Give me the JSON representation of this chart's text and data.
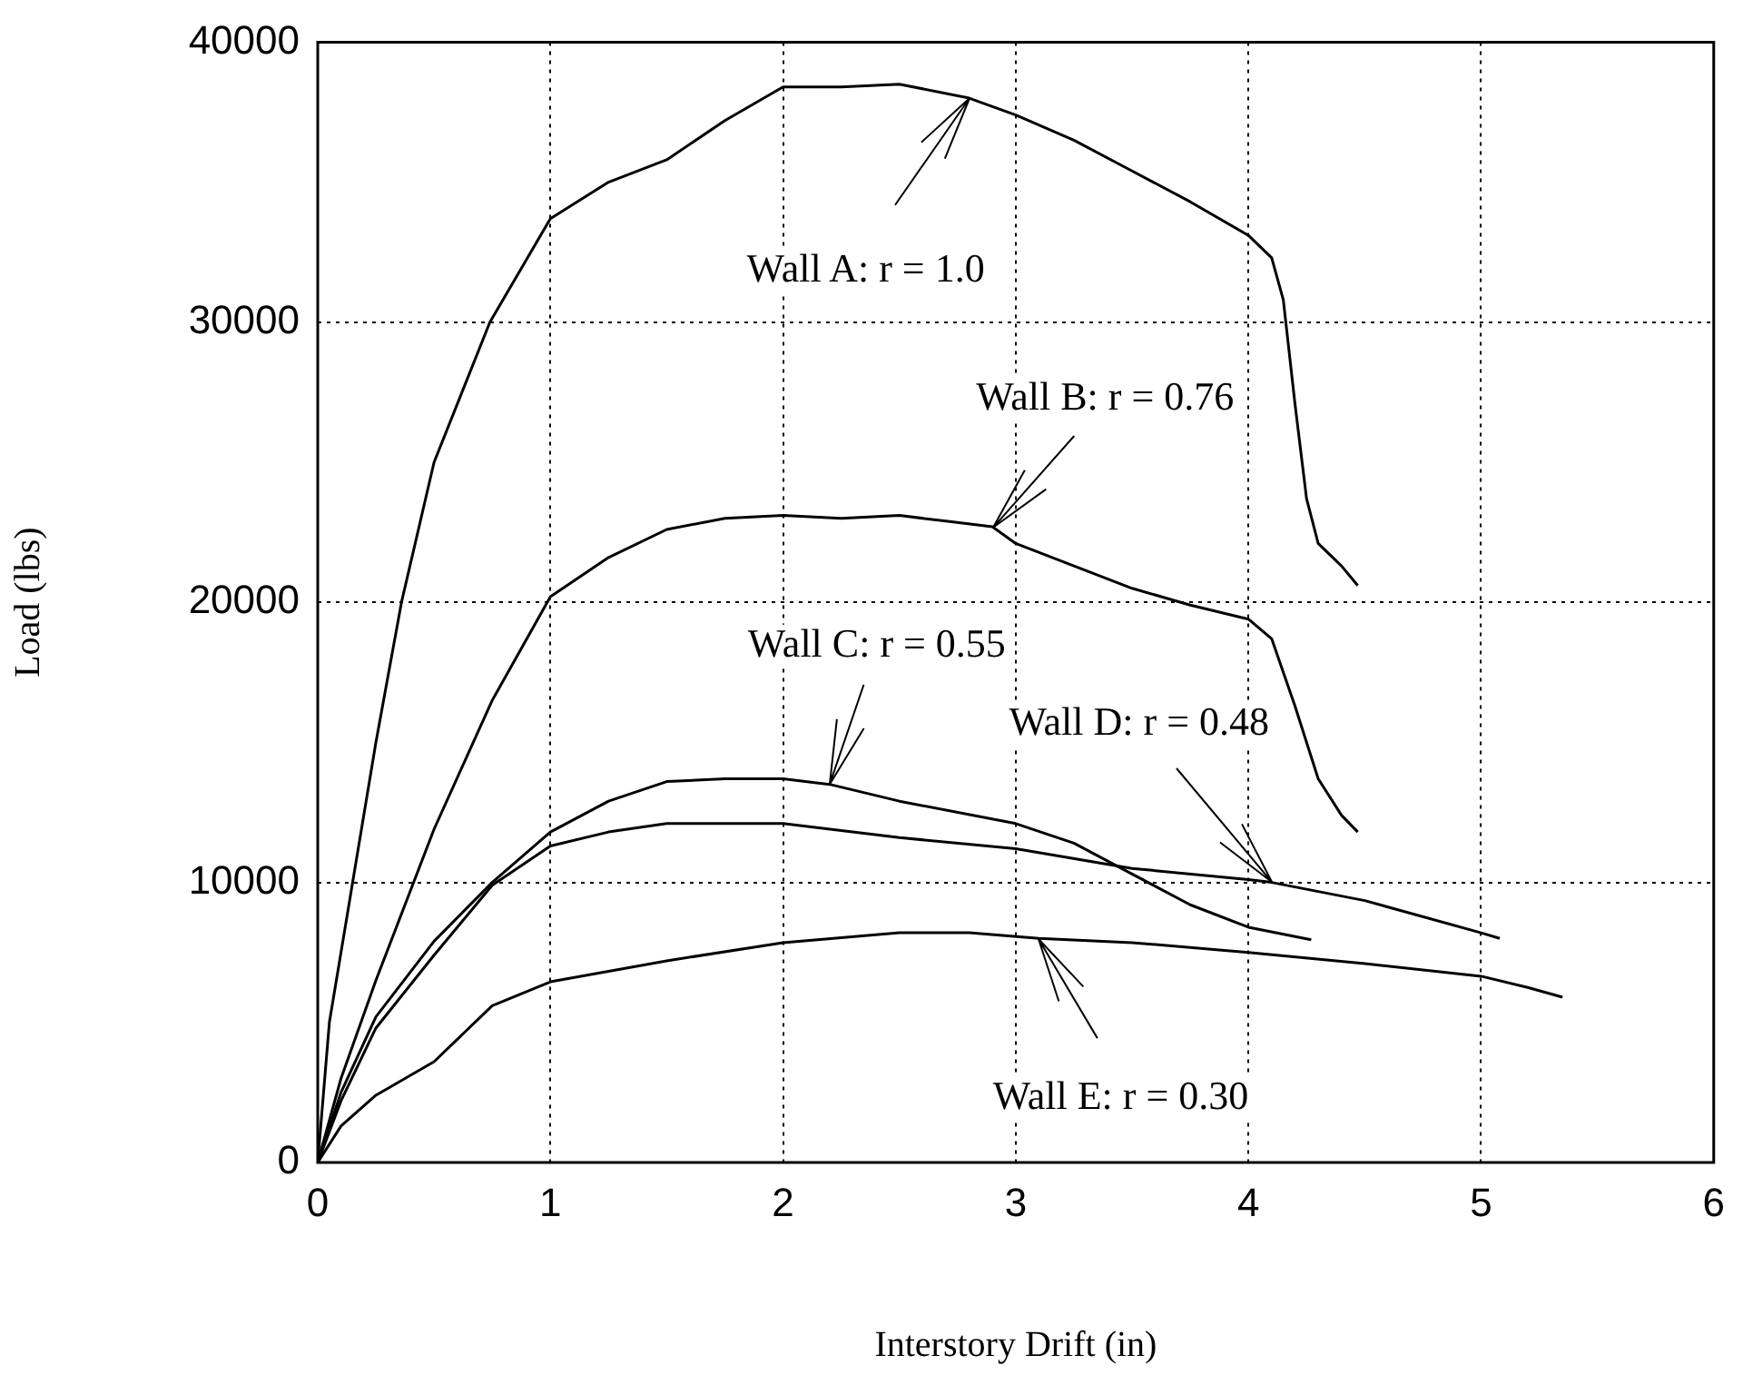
{
  "chart_data": {
    "type": "line",
    "xlabel": "Interstory Drift (in)",
    "ylabel": "Load (lbs)",
    "xlim": [
      0,
      6
    ],
    "xticks": [
      0,
      1,
      2,
      3,
      4,
      5,
      6
    ],
    "ylim": [
      0,
      40000
    ],
    "yticks": [
      0,
      10000,
      20000,
      30000,
      40000
    ],
    "grid": true,
    "legend": false,
    "series": [
      {
        "name": "Wall A: r = 1.0",
        "color": "#000000",
        "x": [
          0,
          0.05,
          0.15,
          0.25,
          0.36,
          0.5,
          0.74,
          1,
          1.25,
          1.5,
          1.75,
          2,
          2.25,
          2.5,
          2.8,
          3,
          3.25,
          3.5,
          3.75,
          4,
          4.1,
          4.15,
          4.2,
          4.25,
          4.3,
          4.4,
          4.47
        ],
        "values": [
          0,
          5000,
          10000,
          15000,
          20000,
          25000,
          30000,
          33700,
          35000,
          35800,
          37200,
          38400,
          38400,
          38500,
          38000,
          37400,
          36500,
          35400,
          34300,
          33100,
          32300,
          30800,
          27100,
          23700,
          22100,
          21300,
          20600
        ]
      },
      {
        "name": "Wall B: r = 0.76",
        "color": "#000000",
        "x": [
          0,
          0.1,
          0.25,
          0.5,
          0.75,
          1,
          1.25,
          1.5,
          1.75,
          2,
          2.25,
          2.5,
          2.7,
          2.9,
          3,
          3.25,
          3.5,
          3.75,
          4,
          4.1,
          4.2,
          4.3,
          4.4,
          4.47
        ],
        "values": [
          0,
          3000,
          6500,
          11900,
          16500,
          20200,
          21600,
          22600,
          23000,
          23100,
          23000,
          23100,
          22900,
          22700,
          22100,
          21300,
          20500,
          19900,
          19400,
          18700,
          16300,
          13700,
          12400,
          11800
        ]
      },
      {
        "name": "Wall C: r = 0.55",
        "color": "#000000",
        "x": [
          0,
          0.1,
          0.25,
          0.5,
          0.75,
          1,
          1.25,
          1.5,
          1.75,
          2,
          2.2,
          2.5,
          3,
          3.25,
          3.5,
          3.75,
          4,
          4.27
        ],
        "values": [
          0,
          2500,
          5200,
          7900,
          10000,
          11800,
          12900,
          13600,
          13700,
          13700,
          13500,
          12900,
          12100,
          11400,
          10300,
          9200,
          8400,
          7950
        ]
      },
      {
        "name": "Wall D: r = 0.48",
        "color": "#000000",
        "x": [
          0,
          0.1,
          0.25,
          0.5,
          0.75,
          1,
          1.25,
          1.5,
          2,
          2.5,
          3,
          3.5,
          4,
          4.1,
          4.5,
          5,
          5.08
        ],
        "values": [
          0,
          2200,
          4800,
          7400,
          9900,
          11300,
          11800,
          12100,
          12100,
          11600,
          11200,
          10500,
          10100,
          10000,
          9350,
          8200,
          8000
        ]
      },
      {
        "name": "Wall E: r = 0.30",
        "color": "#000000",
        "x": [
          0,
          0.1,
          0.25,
          0.5,
          0.75,
          1,
          1.5,
          2,
          2.5,
          2.8,
          3.1,
          3.5,
          4,
          4.5,
          5,
          5.2,
          5.35
        ],
        "values": [
          0,
          1300,
          2400,
          3600,
          5600,
          6450,
          7200,
          7850,
          8200,
          8200,
          8000,
          7850,
          7500,
          7100,
          6650,
          6250,
          5900
        ]
      }
    ]
  }
}
